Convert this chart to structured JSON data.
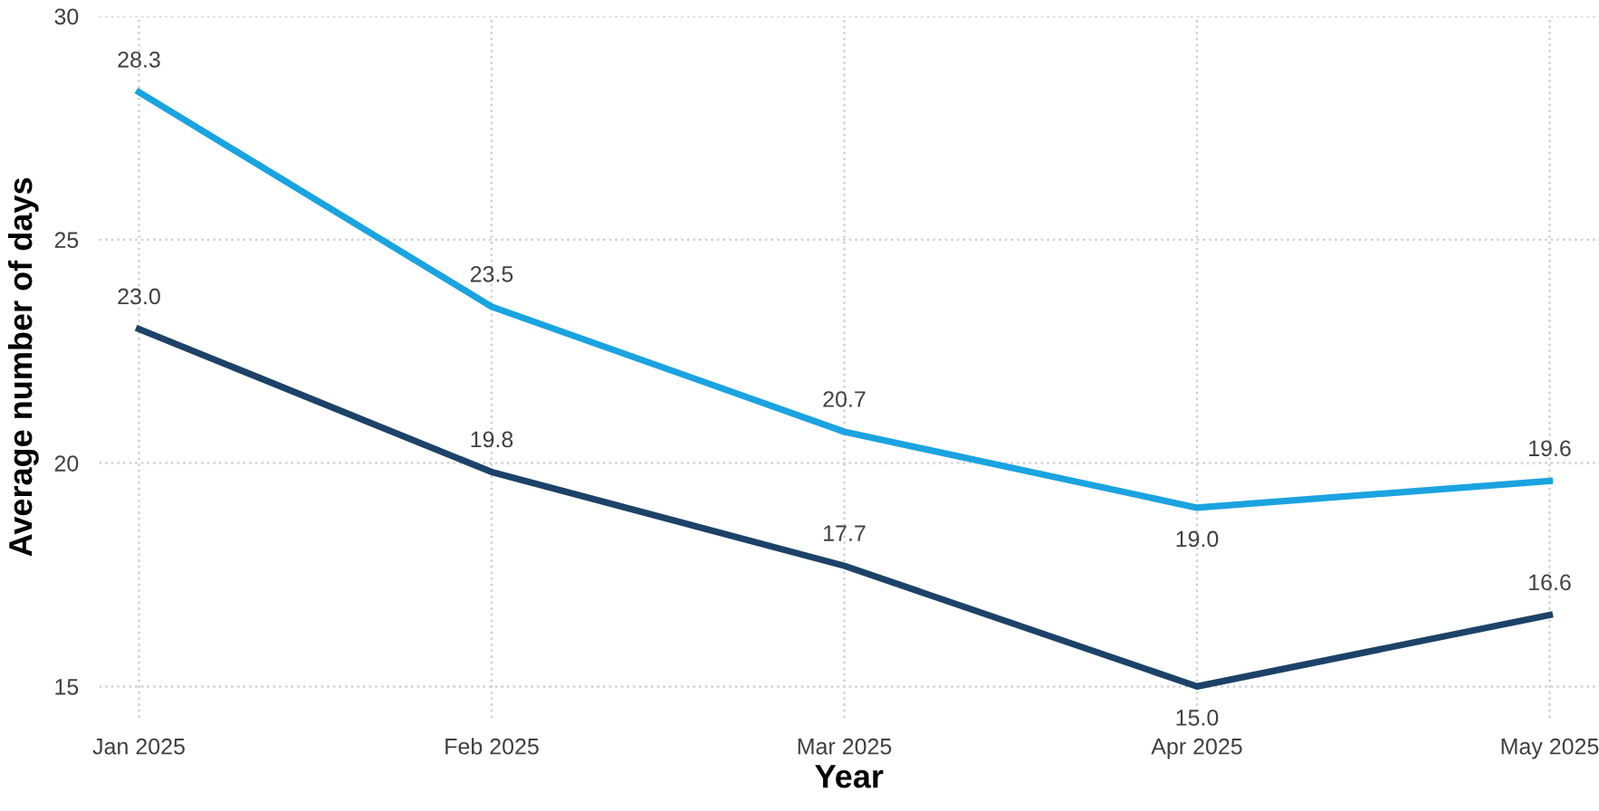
{
  "chart_data": {
    "type": "line",
    "xlabel": "Year",
    "ylabel": "Average number of days",
    "categories": [
      "Jan 2025",
      "Feb 2025",
      "Mar 2025",
      "Apr 2025",
      "May 2025"
    ],
    "series": [
      {
        "color": "#1ba3e0",
        "values": [
          28.3,
          23.5,
          20.7,
          19.0,
          19.6
        ],
        "value_labels": [
          "28.3",
          "23.5",
          "20.7",
          "19.0",
          "19.6"
        ]
      },
      {
        "color": "#1d4268",
        "values": [
          23.0,
          19.8,
          17.7,
          15.0,
          16.6
        ],
        "value_labels": [
          "23.0",
          "19.8",
          "17.7",
          "15.0",
          "16.6"
        ]
      }
    ],
    "ylim": [
      14.3,
      30
    ],
    "yticks": [
      15,
      20,
      25,
      30
    ],
    "grid": true,
    "marker": "none",
    "line_style": "solid"
  }
}
